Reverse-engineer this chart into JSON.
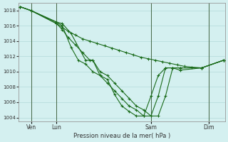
{
  "xlabel": "Pression niveau de la mer( hPa )",
  "bg_color": "#d4f0f0",
  "line_color": "#1a6b1a",
  "grid_color": "#b8dede",
  "ylim": [
    1003.5,
    1019.0
  ],
  "yticks": [
    1004,
    1006,
    1008,
    1010,
    1012,
    1014,
    1016,
    1018
  ],
  "xlim": [
    -0.1,
    14.1
  ],
  "vline_positions": [
    0.75,
    2.5,
    9.0,
    13.0
  ],
  "xtick_positions": [
    0.75,
    2.5,
    9.0,
    13.0
  ],
  "xtick_labels": [
    "Ven",
    "Lun",
    "Sam",
    "Dim"
  ],
  "series": [
    {
      "x": [
        0,
        0.75,
        2.5,
        2.9,
        3.3,
        3.8,
        4.3,
        4.8,
        5.3,
        5.8,
        6.3,
        6.8,
        7.3,
        7.8,
        8.3,
        8.8,
        9.3,
        9.8,
        10.3,
        10.8,
        11.3,
        11.8,
        12.5,
        14.0
      ],
      "y": [
        1018.5,
        1018.0,
        1016.3,
        1015.8,
        1015.3,
        1014.8,
        1014.3,
        1014.0,
        1013.7,
        1013.4,
        1013.1,
        1012.8,
        1012.5,
        1012.2,
        1011.9,
        1011.7,
        1011.5,
        1011.3,
        1011.1,
        1010.9,
        1010.7,
        1010.6,
        1010.5,
        1011.5
      ]
    },
    {
      "x": [
        0,
        0.75,
        2.5,
        2.9,
        3.5,
        4.5,
        5.0,
        5.5,
        6.0,
        6.5,
        7.0,
        7.5,
        8.0,
        8.5,
        9.0,
        9.5,
        10.0,
        10.5,
        11.0,
        12.5,
        14.0
      ],
      "y": [
        1018.5,
        1018.0,
        1016.5,
        1016.3,
        1015.0,
        1011.5,
        1011.5,
        1010.0,
        1009.5,
        1008.5,
        1007.5,
        1006.5,
        1005.5,
        1005.0,
        1004.2,
        1004.2,
        1006.8,
        1010.5,
        1010.5,
        1010.5,
        1011.5
      ]
    },
    {
      "x": [
        0,
        0.75,
        2.5,
        2.9,
        3.5,
        4.0,
        4.5,
        5.0,
        5.5,
        6.0,
        6.5,
        7.0,
        7.5,
        8.0,
        8.5,
        9.0,
        9.5,
        10.0,
        10.5,
        11.0,
        12.5,
        14.0
      ],
      "y": [
        1018.5,
        1018.0,
        1016.5,
        1016.0,
        1013.2,
        1011.5,
        1011.0,
        1010.0,
        1009.5,
        1008.5,
        1007.5,
        1006.5,
        1005.5,
        1005.0,
        1004.2,
        1004.2,
        1006.8,
        1010.5,
        1010.5,
        1010.5,
        1010.5,
        1011.5
      ]
    },
    {
      "x": [
        0,
        0.75,
        2.5,
        2.9,
        3.3,
        3.8,
        4.3,
        4.8,
        5.0,
        5.5,
        6.0,
        6.5,
        7.0,
        7.5,
        8.0,
        8.5,
        9.0,
        9.5,
        10.0,
        10.5,
        11.0,
        12.5,
        14.0
      ],
      "y": [
        1018.5,
        1018.0,
        1016.3,
        1015.5,
        1014.5,
        1013.5,
        1012.5,
        1011.5,
        1011.5,
        1009.5,
        1009.0,
        1007.0,
        1005.5,
        1004.8,
        1004.2,
        1004.2,
        1006.8,
        1009.5,
        1010.5,
        1010.5,
        1010.2,
        1010.5,
        1011.5
      ]
    }
  ]
}
